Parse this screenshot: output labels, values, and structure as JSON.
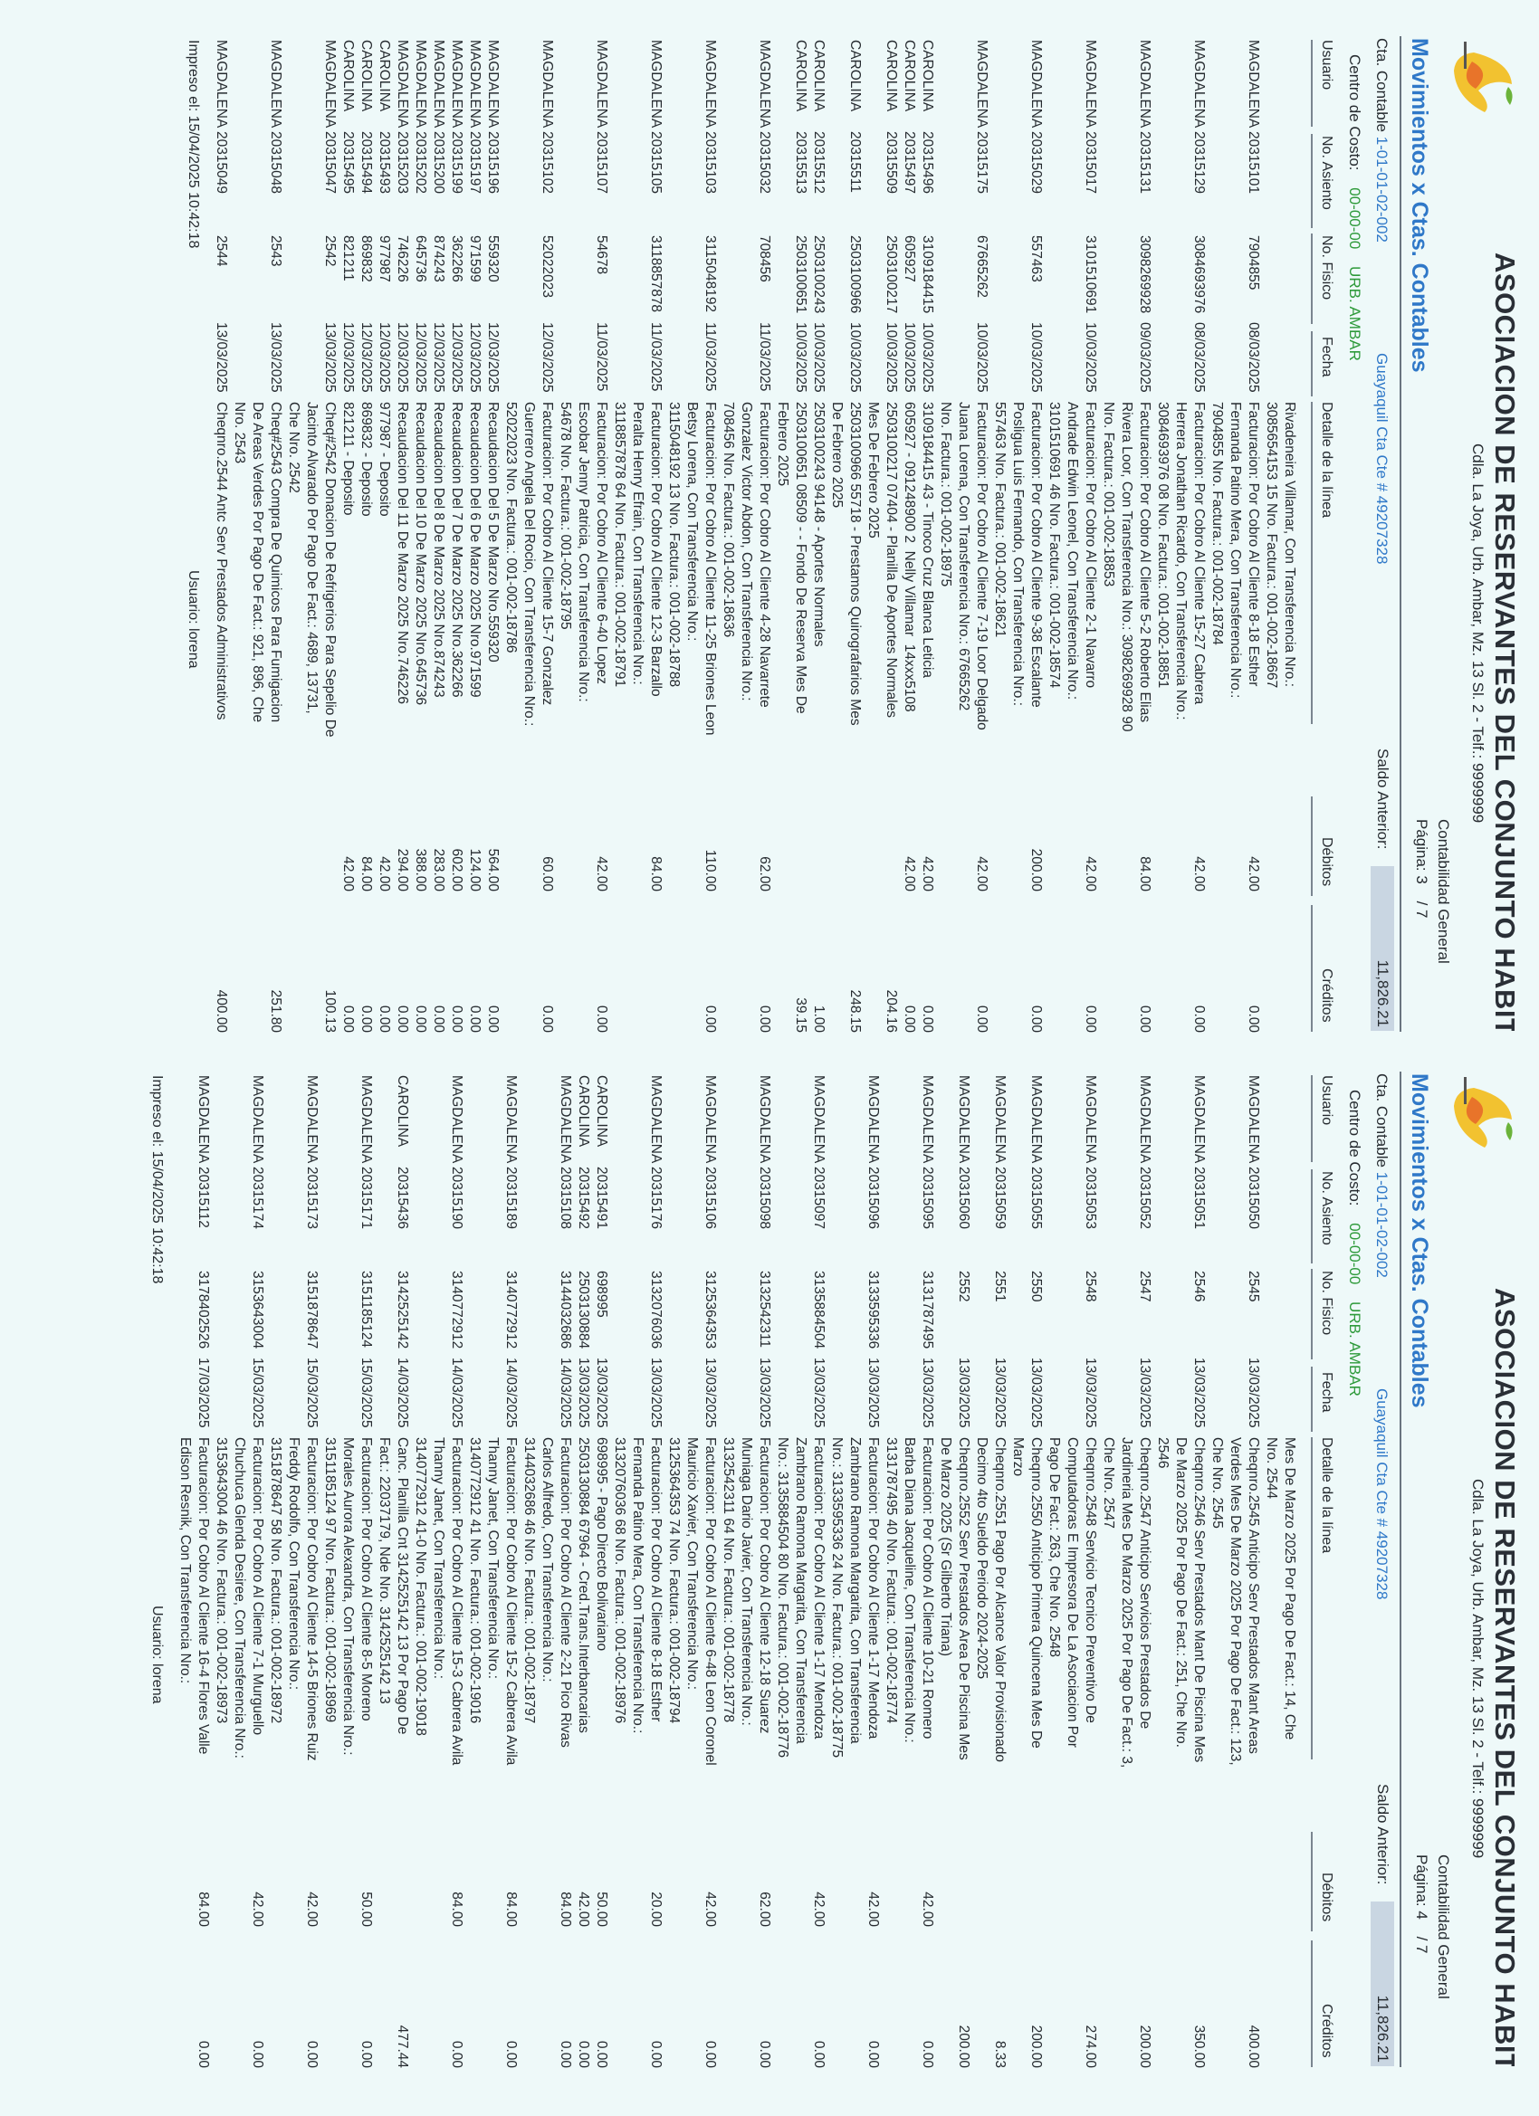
{
  "header": {
    "org_title": "ASOCIACION DE RESERVANTES DEL CONJUNTO HABITA",
    "address": "Cdla. La Joya, Urb. Ambar, Mz. 13 Sl. 2 - Telf.: 9999999",
    "system": "Contabilidad General",
    "page_label": "Página:",
    "page_total": "/ 7",
    "report_title": "Movimientos x Ctas. Contables",
    "saldo_label": "Saldo Anterior:",
    "saldo_value": "11,826.21",
    "cta_label": "Cta. Contable",
    "cta_value": "1-01-01-02-002",
    "bank": "Guayaquil Cta Cte # 49207328",
    "cc_label": "Centro de Costo:",
    "cc_code": "00-00-00",
    "cc_name": "URB. AMBAR",
    "logo_text": "AMBAR"
  },
  "columns": {
    "usuario": "Usuario",
    "asiento": "No. Asiento",
    "fisico": "No. Fisico",
    "fecha": "Fecha",
    "detalle": "Detalle de la línea",
    "debitos": "Débitos",
    "creditos": "Créditos"
  },
  "colors": {
    "heading": "#2f78c8",
    "cost_center": "#2e9a3a",
    "saldo_box": "#c9d6e2"
  },
  "footer": {
    "printed": "Impreso el: 15/04/2025 10:42:18",
    "user": "Usuario: lorena"
  },
  "pages": [
    {
      "page_number": "3",
      "rows": [
        {
          "u": "",
          "a": "",
          "f": "",
          "d": "",
          "x": "Rivadeneira Villamar, Con Transferencia Nro.:\n3085654153 15 Nro. Factura.: 001-002-18667",
          "db": "",
          "cr": ""
        },
        {
          "u": "MAGDALENA",
          "a": "20315101",
          "f": "7904855",
          "d": "08/03/2025",
          "x": "Facturacion: Por Cobro Al Cliente 8-18 Esther\nFernanda Patino Mera, Con Transferencia Nro.:\n7904855 Nro. Factura.: 001-002-18784",
          "db": "42.00",
          "cr": "0.00"
        },
        {
          "u": "MAGDALENA",
          "a": "20315129",
          "f": "3084693976",
          "d": "08/03/2025",
          "x": "Facturacion: Por Cobro Al Cliente 15-27 Cabrera\nHerrera Jonathan Ricardo, Con Transferencia Nro.:\n3084693976 08 Nro. Factura.: 001-002-18851",
          "db": "42.00",
          "cr": "0.00"
        },
        {
          "u": "MAGDALENA",
          "a": "20315131",
          "f": "3098269928",
          "d": "09/03/2025",
          "x": "Facturacion: Por Cobro Al Cliente 5-2 Roberto Elias\nRivera Loor, Con Transferencia Nro.: 3098269928 90\nNro. Factura.: 001-002-18853",
          "db": "84.00",
          "cr": "0.00"
        },
        {
          "u": "MAGDALENA",
          "a": "20315017",
          "f": "3101510691",
          "d": "10/03/2025",
          "x": "Facturacion: Por Cobro Al Cliente 2-1 Navarro\nAndrade Edwin Leonel, Con Transferencia Nro.:\n3101510691 46 Nro. Factura.: 001-002-18574",
          "db": "42.00",
          "cr": "0.00"
        },
        {
          "u": "MAGDALENA",
          "a": "20315029",
          "f": "557463",
          "d": "10/03/2025",
          "x": "Facturacion: Por Cobro Al Cliente 9-38 Escalante\nPosligua Luis Fernando, Con Transferencia Nro.:\n557463 Nro. Factura.: 001-002-18621",
          "db": "200.00",
          "cr": "0.00"
        },
        {
          "u": "MAGDALENA",
          "a": "20315175",
          "f": "67665262",
          "d": "10/03/2025",
          "x": "Facturacion: Por Cobro Al Cliente 7-19 Loor Delgado\nJuana Lorena, Con Transferencia Nro.: 67665262\nNro. Factura.: 001-002-18975",
          "db": "42.00",
          "cr": "0.00"
        },
        {
          "u": "CAROLINA",
          "a": "20315496",
          "f": "3109184415",
          "d": "10/03/2025",
          "x": "3109184415 43 - Tinoco Cruz Blanca Leticia",
          "db": "42.00",
          "cr": "0.00"
        },
        {
          "u": "CAROLINA",
          "a": "20315497",
          "f": "605927",
          "d": "10/03/2025",
          "x": "605927 - 091248900 2  Nelly Villamar  14xxx5108",
          "db": "42.00",
          "cr": "0.00"
        },
        {
          "u": "CAROLINA",
          "a": "20315509",
          "f": "2503100217",
          "d": "10/03/2025",
          "x": "2503100217 07404 - Planilla De Aportes Normales\nMes De Febrero 2025",
          "db": "",
          "cr": "204.16"
        },
        {
          "u": "CAROLINA",
          "a": "20315511",
          "f": "2503100966",
          "d": "10/03/2025",
          "x": "2503100966 55718 - Prestamos Quirografarios Mes\nDe Febrero 2025",
          "db": "",
          "cr": "248.15"
        },
        {
          "u": "CAROLINA",
          "a": "20315512",
          "f": "2503100243",
          "d": "10/03/2025",
          "x": "2503100243 94148 - Aportes Normales",
          "db": "",
          "cr": "1.00"
        },
        {
          "u": "CAROLINA",
          "a": "20315513",
          "f": "2503100651",
          "d": "10/03/2025",
          "x": "2503100651 08509 - - Fondo De Reserva Mes De\nFebrero 2025",
          "db": "",
          "cr": "39.15"
        },
        {
          "u": "MAGDALENA",
          "a": "20315032",
          "f": "708456",
          "d": "11/03/2025",
          "x": "Facturacion: Por Cobro Al Cliente 4-28 Navarrete\nGonzalez Victor Abdon, Con Transferencia Nro.:\n708456 Nro. Factura.: 001-002-18636",
          "db": "62.00",
          "cr": "0.00"
        },
        {
          "u": "MAGDALENA",
          "a": "20315103",
          "f": "3115048192",
          "d": "11/03/2025",
          "x": "Facturacion: Por Cobro Al Cliente 11-25 Briones Leon\nBetsy Lorena, Con Transferencia Nro.:\n3115048192 13 Nro. Factura.: 001-002-18788",
          "db": "110.00",
          "cr": "0.00"
        },
        {
          "u": "MAGDALENA",
          "a": "20315105",
          "f": "3118857878",
          "d": "11/03/2025",
          "x": "Facturacion: Por Cobro Al Cliente 12-3 Barzallo\nPeralta Henry Efrain, Con Transferencia Nro.:\n3118857878 64 Nro. Factura.: 001-002-18791",
          "db": "84.00",
          "cr": ""
        },
        {
          "u": "MAGDALENA",
          "a": "20315107",
          "f": "54678",
          "d": "11/03/2025",
          "x": "Facturacion: Por Cobro Al Cliente 6-40 Lopez\nEscobar Jenny Patricia, Con Transferencia Nro.:\n54678 Nro. Factura.: 001-002-18795",
          "db": "42.00",
          "cr": "0.00"
        },
        {
          "u": "MAGDALENA",
          "a": "20315102",
          "f": "52022023",
          "d": "12/03/2025",
          "x": "Facturacion: Por Cobro Al Cliente 15-7 Gonzalez\nGuerrero Angela Del Rocio, Con Transferencia Nro.:\n52022023 Nro. Factura.: 001-002-18786",
          "db": "60.00",
          "cr": "0.00"
        },
        {
          "u": "MAGDALENA",
          "a": "20315196",
          "f": "559320",
          "d": "12/03/2025",
          "x": "Recaudacion Del 5 De Marzo Nro.559320",
          "db": "564.00",
          "cr": "0.00"
        },
        {
          "u": "MAGDALENA",
          "a": "20315197",
          "f": "971599",
          "d": "12/03/2025",
          "x": "Recaudacion Del 6 De Marzo 2025 Nro.971599",
          "db": "124.00",
          "cr": "0.00"
        },
        {
          "u": "MAGDALENA",
          "a": "20315199",
          "f": "362266",
          "d": "12/03/2025",
          "x": "Recaudacion Del 7 De Marzo 2025 Nro.362266",
          "db": "602.00",
          "cr": "0.00"
        },
        {
          "u": "MAGDALENA",
          "a": "20315200",
          "f": "874243",
          "d": "12/03/2025",
          "x": "Recaudacion Del 8 De Marzo 2025 Nro.874243",
          "db": "283.00",
          "cr": "0.00"
        },
        {
          "u": "MAGDALENA",
          "a": "20315202",
          "f": "645736",
          "d": "12/03/2025",
          "x": "Recaudacion Del 10 De Marzo 2025 Nro.645736",
          "db": "388.00",
          "cr": "0.00"
        },
        {
          "u": "MAGDALENA",
          "a": "20315203",
          "f": "746226",
          "d": "12/03/2025",
          "x": "Recaudacion Del 11 De Marzo 2025 Nro.746226",
          "db": "294.00",
          "cr": "0.00"
        },
        {
          "u": "CAROLINA",
          "a": "20315493",
          "f": "977987",
          "d": "12/03/2025",
          "x": "977987 - Deposito",
          "db": "42.00",
          "cr": "0.00"
        },
        {
          "u": "CAROLINA",
          "a": "20315494",
          "f": "869832",
          "d": "12/03/2025",
          "x": "869832 - Deposito",
          "db": "84.00",
          "cr": "0.00"
        },
        {
          "u": "CAROLINA",
          "a": "20315495",
          "f": "821211",
          "d": "12/03/2025",
          "x": "821211 - Deposito",
          "db": "42.00",
          "cr": "0.00"
        },
        {
          "u": "MAGDALENA",
          "a": "20315047",
          "f": "2542",
          "d": "13/03/2025",
          "x": "Cheq#2542 Donacion De Refrigerios Para Sepelio De\nJacinto Alvarado Por Pago De Fact.: 4689, 13731,\nChe Nro. 2542",
          "db": "",
          "cr": "100.13"
        },
        {
          "u": "MAGDALENA",
          "a": "20315048",
          "f": "2543",
          "d": "13/03/2025",
          "x": "Cheq#2543 Compra De Quimicos Para Fumigacion\nDe Areas Verdes Por Pago De Fact.: 921, 896, Che\nNro. 2543",
          "db": "",
          "cr": "251.80"
        },
        {
          "u": "MAGDALENA",
          "a": "20315049",
          "f": "2544",
          "d": "13/03/2025",
          "x": "Cheqnro.2544 Antc Serv Prestados Administrativos",
          "db": "",
          "cr": "400.00"
        }
      ]
    },
    {
      "page_number": "4",
      "rows": [
        {
          "u": "",
          "a": "",
          "f": "",
          "d": "",
          "x": "Mes De Marzo 2025 Por Pago De Fact.: 14, Che\nNro. 2544",
          "db": "",
          "cr": ""
        },
        {
          "u": "MAGDALENA",
          "a": "20315050",
          "f": "2545",
          "d": "13/03/2025",
          "x": "Cheqnro.2545 Anticipo Serv Prestados Mant Areas\nVerdes Mes De Marzo 2025 Por Pago De Fact.: 123,\nChe Nro. 2545",
          "db": "",
          "cr": "400.00"
        },
        {
          "u": "MAGDALENA",
          "a": "20315051",
          "f": "2546",
          "d": "13/03/2025",
          "x": "Cheqnro.2546 Serv Prestados Mant De Piscina Mes\nDe Marzo 2025 Por Pago De Fact.: 251, Che Nro.\n2546",
          "db": "",
          "cr": "350.00"
        },
        {
          "u": "MAGDALENA",
          "a": "20315052",
          "f": "2547",
          "d": "13/03/2025",
          "x": "Cheqnro.2547 Anticipo Servicios Prestados De\nJardineria Mes De Marzo 2025 Por Pago De Fact.: 3,\nChe Nro. 2547",
          "db": "",
          "cr": "200.00"
        },
        {
          "u": "MAGDALENA",
          "a": "20315053",
          "f": "2548",
          "d": "13/03/2025",
          "x": "Cheqnro.2548 Servicio Tecnico Preventivo De\nComputadoras E Impresora De La Asociacion Por\nPago De Fact.: 263, Che Nro. 2548",
          "db": "",
          "cr": "274.00"
        },
        {
          "u": "MAGDALENA",
          "a": "20315055",
          "f": "2550",
          "d": "13/03/2025",
          "x": "Cheqnro.2550 Anticipo Primera Quincena Mes De\nMarzo",
          "db": "",
          "cr": "200.00"
        },
        {
          "u": "MAGDALENA",
          "a": "20315059",
          "f": "2551",
          "d": "13/03/2025",
          "x": "Cheqnro.2551 Pago Por Alcance Valor Provisionado\nDecimo 4to Sueldo Periodo 2024-2025",
          "db": "",
          "cr": "8.33"
        },
        {
          "u": "MAGDALENA",
          "a": "20315060",
          "f": "2552",
          "d": "13/03/2025",
          "x": "Cheqnro.2552 Serv Prestados Area De Piscina Mes\nDe Marzo 2025 (Sr Gilberto Triana)",
          "db": "",
          "cr": "200.00"
        },
        {
          "u": "MAGDALENA",
          "a": "20315095",
          "f": "3131787495",
          "d": "13/03/2025",
          "x": "Facturacion: Por Cobro Al Cliente 10-21 Romero\nBarba Diana Jacqueline, Con Transferencia Nro.:\n3131787495 40 Nro. Factura.: 001-002-18774",
          "db": "42.00",
          "cr": "0.00"
        },
        {
          "u": "MAGDALENA",
          "a": "20315096",
          "f": "3133595336",
          "d": "13/03/2025",
          "x": "Facturacion: Por Cobro Al Cliente 1-17 Mendoza\nZambrano Ramona Margarita, Con Transferencia\nNro.: 3133595336 24 Nro. Factura.: 001-002-18775",
          "db": "42.00",
          "cr": "0.00"
        },
        {
          "u": "MAGDALENA",
          "a": "20315097",
          "f": "3135884504",
          "d": "13/03/2025",
          "x": "Facturacion: Por Cobro Al Cliente 1-17 Mendoza\nZambrano Ramona Margarita, Con Transferencia\nNro.: 3135884504 80 Nro. Factura.: 001-002-18776",
          "db": "42.00",
          "cr": "0.00"
        },
        {
          "u": "MAGDALENA",
          "a": "20315098",
          "f": "3132542311",
          "d": "13/03/2025",
          "x": "Facturacion: Por Cobro Al Cliente 12-18 Suarez\nMuniaga Dario Javier, Con Transferencia Nro.:\n3132542311 64 Nro. Factura.: 001-002-18778",
          "db": "62.00",
          "cr": "0.00"
        },
        {
          "u": "MAGDALENA",
          "a": "20315106",
          "f": "3125364353",
          "d": "13/03/2025",
          "x": "Facturacion: Por Cobro Al Cliente 6-48 Leon Coronel\nMauricio Xavier, Con Transferencia Nro.:\n3125364353 74 Nro. Factura.: 001-002-18794",
          "db": "42.00",
          "cr": "0.00"
        },
        {
          "u": "MAGDALENA",
          "a": "20315176",
          "f": "3132076036",
          "d": "13/03/2025",
          "x": "Facturacion: Por Cobro Al Cliente 8-18 Esther\nFernanda Patino Mera, Con Transferencia Nro.:\n3132076036 68 Nro. Factura.: 001-002-18976",
          "db": "20.00",
          "cr": "0.00"
        },
        {
          "u": "CAROLINA",
          "a": "20315491",
          "f": "698995",
          "d": "13/03/2025",
          "x": "698995 - Pago Directo Bolivariano",
          "db": "50.00",
          "cr": "0.00"
        },
        {
          "u": "CAROLINA",
          "a": "20315492",
          "f": "2503130884",
          "d": "13/03/2025",
          "x": "2503130884 67964 - Cred.Trans.Interbancarias",
          "db": "42.00",
          "cr": "0.00"
        },
        {
          "u": "MAGDALENA",
          "a": "20315108",
          "f": "3144032686",
          "d": "14/03/2025",
          "x": "Facturacion: Por Cobro Al Cliente 2-21 Pico Rivas\nCarlos Alfredo, Con Transferencia Nro.:\n3144032686 46 Nro. Factura.: 001-002-18797",
          "db": "84.00",
          "cr": "0.00"
        },
        {
          "u": "MAGDALENA",
          "a": "20315189",
          "f": "3140772912",
          "d": "14/03/2025",
          "x": "Facturacion: Por Cobro Al Cliente 15-2 Cabrera Avila\nThanny Janet, Con Transferencia Nro.:\n3140772912 41 Nro. Factura.: 001-002-19016",
          "db": "84.00",
          "cr": "0.00"
        },
        {
          "u": "MAGDALENA",
          "a": "20315190",
          "f": "3140772912",
          "d": "14/03/2025",
          "x": "Facturacion: Por Cobro Al Cliente 15-3 Cabrera Avila\nThanny Janet, Con Transferencia Nro.:\n3140772912 41-0 Nro. Factura.: 001-002-19018",
          "db": "84.00",
          "cr": "0.00"
        },
        {
          "u": "CAROLINA",
          "a": "20315436",
          "f": "3142525142",
          "d": "14/03/2025",
          "x": "Canc. Planilla Cnt 3142525142 13 Por Pago De\nFact.: 22037179, Nde Nro. 3142525142 13",
          "db": "",
          "cr": "477.44"
        },
        {
          "u": "MAGDALENA",
          "a": "20315171",
          "f": "3151185124",
          "d": "15/03/2025",
          "x": "Facturacion: Por Cobro Al Cliente 8-5 Moreno\nMorales Aurora Alexandra, Con Transferencia Nro.:\n3151185124 97 Nro. Factura.: 001-002-18969",
          "db": "50.00",
          "cr": "0.00"
        },
        {
          "u": "MAGDALENA",
          "a": "20315173",
          "f": "3151878647",
          "d": "15/03/2025",
          "x": "Facturacion: Por Cobro Al Cliente 14-5 Briones Ruiz\nFreddy Rodolfo, Con Transferencia Nro.:\n3151878647 58 Nro. Factura.: 001-002-18972",
          "db": "42.00",
          "cr": "0.00"
        },
        {
          "u": "MAGDALENA",
          "a": "20315174",
          "f": "3153643004",
          "d": "15/03/2025",
          "x": "Facturacion: Por Cobro Al Cliente 7-1 Murguello\nChuchuca Glenda Desiree, Con Transferencia Nro.:\n3153643004 46 Nro. Factura.: 001-002-18973",
          "db": "42.00",
          "cr": "0.00"
        },
        {
          "u": "MAGDALENA",
          "a": "20315112",
          "f": "3178402526",
          "d": "17/03/2025",
          "x": "Facturacion: Por Cobro Al Cliente 16-4 Flores Valle\nEdison Resnik, Con Transferencia Nro.:",
          "db": "84.00",
          "cr": "0.00"
        }
      ]
    }
  ]
}
